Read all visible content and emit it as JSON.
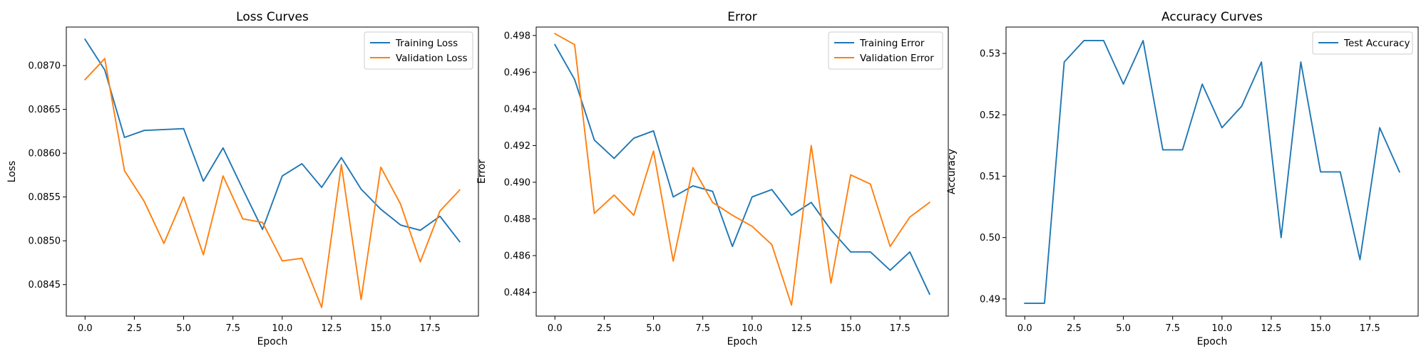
{
  "chart_data": [
    {
      "type": "line",
      "title": "Loss Curves",
      "xlabel": "Epoch",
      "ylabel": "Loss",
      "xlim": [
        -0.95,
        19.95
      ],
      "ylim": [
        0.08414,
        0.08744
      ],
      "xticks": [
        0.0,
        2.5,
        5.0,
        7.5,
        10.0,
        12.5,
        15.0,
        17.5
      ],
      "xtick_labels": [
        "0.0",
        "2.5",
        "5.0",
        "7.5",
        "10.0",
        "12.5",
        "15.0",
        "17.5"
      ],
      "yticks": [
        0.0845,
        0.085,
        0.0855,
        0.086,
        0.0865,
        0.087
      ],
      "ytick_labels": [
        "0.0845",
        "0.0850",
        "0.0855",
        "0.0860",
        "0.0865",
        "0.0870"
      ],
      "grid": false,
      "legend_position": "upper right",
      "x": [
        0,
        1,
        2,
        3,
        4,
        5,
        6,
        7,
        8,
        9,
        10,
        11,
        12,
        13,
        14,
        15,
        16,
        17,
        18,
        19
      ],
      "series": [
        {
          "name": "Training Loss",
          "color": "#1f77b4",
          "values": [
            0.0873,
            0.08695,
            0.08618,
            0.08626,
            0.08627,
            0.08628,
            0.08568,
            0.08606,
            0.08559,
            0.08513,
            0.08574,
            0.08588,
            0.08561,
            0.08595,
            0.08559,
            0.08536,
            0.08518,
            0.08512,
            0.08528,
            0.08499
          ]
        },
        {
          "name": "Validation Loss",
          "color": "#ff7f0e",
          "values": [
            0.08684,
            0.08708,
            0.0858,
            0.08545,
            0.08497,
            0.0855,
            0.08484,
            0.08574,
            0.08525,
            0.08521,
            0.08477,
            0.0848,
            0.08424,
            0.08587,
            0.08433,
            0.08584,
            0.08542,
            0.08476,
            0.08534,
            0.08558
          ]
        }
      ]
    },
    {
      "type": "line",
      "title": "Error",
      "xlabel": "Epoch",
      "ylabel": "Error",
      "xlim": [
        -0.95,
        19.95
      ],
      "ylim": [
        0.4827,
        0.49846
      ],
      "xticks": [
        0.0,
        2.5,
        5.0,
        7.5,
        10.0,
        12.5,
        15.0,
        17.5
      ],
      "xtick_labels": [
        "0.0",
        "2.5",
        "5.0",
        "7.5",
        "10.0",
        "12.5",
        "15.0",
        "17.5"
      ],
      "yticks": [
        0.484,
        0.486,
        0.488,
        0.49,
        0.492,
        0.494,
        0.496,
        0.498
      ],
      "ytick_labels": [
        "0.484",
        "0.486",
        "0.488",
        "0.490",
        "0.492",
        "0.494",
        "0.496",
        "0.498"
      ],
      "grid": false,
      "legend_position": "upper right",
      "x": [
        0,
        1,
        2,
        3,
        4,
        5,
        6,
        7,
        8,
        9,
        10,
        11,
        12,
        13,
        14,
        15,
        16,
        17,
        18,
        19
      ],
      "series": [
        {
          "name": "Training Error",
          "color": "#1f77b4",
          "values": [
            0.4975,
            0.4956,
            0.4923,
            0.4913,
            0.4924,
            0.4928,
            0.4892,
            0.4898,
            0.4895,
            0.4865,
            0.4892,
            0.4896,
            0.4882,
            0.4889,
            0.4874,
            0.4862,
            0.4862,
            0.4852,
            0.4862,
            0.4839
          ]
        },
        {
          "name": "Validation Error",
          "color": "#ff7f0e",
          "values": [
            0.4981,
            0.4975,
            0.4883,
            0.4893,
            0.4882,
            0.4917,
            0.4857,
            0.4908,
            0.4889,
            0.4882,
            0.4876,
            0.4866,
            0.4833,
            0.492,
            0.4845,
            0.4904,
            0.4899,
            0.4865,
            0.4881,
            0.4889
          ]
        }
      ]
    },
    {
      "type": "line",
      "title": "Accuracy Curves",
      "xlabel": "Epoch",
      "ylabel": "Accuracy",
      "xlim": [
        -0.95,
        19.95
      ],
      "ylim": [
        0.4872,
        0.5343
      ],
      "xticks": [
        0.0,
        2.5,
        5.0,
        7.5,
        10.0,
        12.5,
        15.0,
        17.5
      ],
      "xtick_labels": [
        "0.0",
        "2.5",
        "5.0",
        "7.5",
        "10.0",
        "12.5",
        "15.0",
        "17.5"
      ],
      "yticks": [
        0.49,
        0.5,
        0.51,
        0.52,
        0.53
      ],
      "ytick_labels": [
        "0.49",
        "0.50",
        "0.51",
        "0.52",
        "0.53"
      ],
      "grid": false,
      "legend_position": "upper right",
      "x": [
        0,
        1,
        2,
        3,
        4,
        5,
        6,
        7,
        8,
        9,
        10,
        11,
        12,
        13,
        14,
        15,
        16,
        17,
        18,
        19
      ],
      "series": [
        {
          "name": "Test Accuracy",
          "color": "#1f77b4",
          "values": [
            0.4893,
            0.4893,
            0.5286,
            0.5321,
            0.5321,
            0.525,
            0.5321,
            0.5143,
            0.5143,
            0.525,
            0.5179,
            0.5214,
            0.5286,
            0.5,
            0.5286,
            0.5107,
            0.5107,
            0.4964,
            0.5179,
            0.5107
          ]
        }
      ]
    }
  ]
}
